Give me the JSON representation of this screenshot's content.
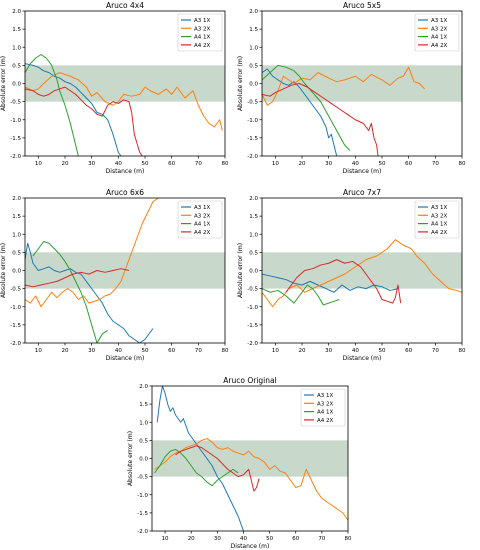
{
  "figure": {
    "band": {
      "y0": -0.5,
      "y1": 0.5,
      "color": "#b6cbb8"
    }
  },
  "chart_data": [
    {
      "type": "line",
      "title": "Aruco 4x4",
      "xlabel": "Distance (m)",
      "ylabel": "Absolute error (m)",
      "xlim": [
        5,
        80
      ],
      "ylim": [
        -2.0,
        2.0
      ],
      "xticks": [
        "10",
        "20",
        "30",
        "40",
        "50",
        "60",
        "70",
        "80"
      ],
      "yticks": [
        "-2.0",
        "-1.5",
        "-1.0",
        "-0.5",
        "0.0",
        "0.5",
        "1.0",
        "1.5",
        "2.0"
      ],
      "legend_position": "top-right",
      "series": [
        {
          "name": "A3 1X",
          "color": "#1f77b4",
          "x": [
            5,
            8,
            10,
            12,
            14,
            16,
            18,
            20,
            22,
            24,
            26,
            28,
            30,
            32,
            34,
            36,
            38,
            40,
            41
          ],
          "y": [
            0.55,
            0.5,
            0.45,
            0.35,
            0.3,
            0.2,
            0.15,
            0.05,
            0.0,
            -0.1,
            -0.25,
            -0.4,
            -0.55,
            -0.8,
            -0.85,
            -1.0,
            -1.4,
            -1.9,
            -2.0
          ]
        },
        {
          "name": "A3 2X",
          "color": "#ff7f0e",
          "x": [
            5,
            8,
            10,
            12,
            15,
            18,
            20,
            22,
            25,
            28,
            30,
            32,
            35,
            38,
            40,
            42,
            45,
            48,
            50,
            52,
            55,
            58,
            60,
            62,
            65,
            68,
            70,
            72,
            74,
            76,
            78,
            79
          ],
          "y": [
            -0.1,
            -0.2,
            -0.15,
            0.0,
            0.2,
            0.3,
            0.25,
            0.2,
            0.1,
            -0.1,
            -0.35,
            -0.25,
            -0.5,
            -0.6,
            -0.5,
            -0.3,
            -0.35,
            -0.3,
            -0.1,
            -0.2,
            -0.3,
            -0.15,
            -0.3,
            -0.1,
            -0.4,
            -0.2,
            -0.6,
            -0.9,
            -1.1,
            -1.2,
            -1.0,
            -1.3
          ]
        },
        {
          "name": "A4 1X",
          "color": "#2ca02c",
          "x": [
            5,
            7,
            9,
            11,
            13,
            15,
            17,
            18,
            20,
            22,
            24,
            25
          ],
          "y": [
            0.3,
            0.55,
            0.7,
            0.8,
            0.7,
            0.5,
            0.1,
            -0.2,
            -0.6,
            -1.1,
            -1.7,
            -2.0
          ]
        },
        {
          "name": "A4 2X",
          "color": "#d62728",
          "x": [
            5,
            8,
            10,
            12,
            14,
            16,
            18,
            20,
            22,
            24,
            26,
            28,
            30,
            32,
            34,
            36,
            38,
            40,
            42,
            44,
            45,
            46,
            48,
            49
          ],
          "y": [
            -0.15,
            -0.2,
            -0.3,
            -0.35,
            -0.3,
            -0.2,
            -0.15,
            -0.1,
            -0.2,
            -0.3,
            -0.45,
            -0.6,
            -0.7,
            -0.85,
            -0.9,
            -0.6,
            -0.5,
            -0.55,
            -0.45,
            -0.5,
            -0.8,
            -1.4,
            -1.9,
            -2.0
          ]
        }
      ]
    },
    {
      "type": "line",
      "title": "Aruco 5x5",
      "xlabel": "Distance (m)",
      "ylabel": "Absolute error (m)",
      "xlim": [
        5,
        80
      ],
      "ylim": [
        -2.0,
        2.0
      ],
      "xticks": [
        "10",
        "20",
        "30",
        "40",
        "50",
        "60",
        "70",
        "80"
      ],
      "yticks": [
        "-2.0",
        "-1.5",
        "-1.0",
        "-0.5",
        "0.0",
        "0.5",
        "1.0",
        "1.5",
        "2.0"
      ],
      "legend_position": "top-right",
      "series": [
        {
          "name": "A3 1X",
          "color": "#1f77b4",
          "x": [
            5,
            7,
            9,
            11,
            13,
            15,
            17,
            19,
            21,
            23,
            25,
            27,
            29,
            30,
            31,
            32,
            33
          ],
          "y": [
            0.3,
            0.4,
            0.2,
            0.1,
            0.0,
            -0.05,
            0.05,
            -0.1,
            -0.3,
            -0.5,
            -0.7,
            -0.9,
            -1.2,
            -1.5,
            -1.4,
            -1.7,
            -2.0
          ]
        },
        {
          "name": "A3 2X",
          "color": "#ff7f0e",
          "x": [
            5,
            7,
            9,
            11,
            13,
            15,
            17,
            20,
            23,
            26,
            30,
            33,
            36,
            40,
            43,
            46,
            50,
            53,
            56,
            58,
            60,
            62,
            64,
            66
          ],
          "y": [
            -0.3,
            -0.6,
            -0.5,
            -0.2,
            0.2,
            0.1,
            0.0,
            0.15,
            0.1,
            0.3,
            0.15,
            0.05,
            0.1,
            0.2,
            0.05,
            0.25,
            0.1,
            -0.05,
            0.15,
            0.2,
            0.45,
            0.05,
            0.0,
            -0.15
          ]
        },
        {
          "name": "A4 1X",
          "color": "#2ca02c",
          "x": [
            5,
            8,
            11,
            14,
            17,
            19,
            21,
            24,
            27,
            30,
            33,
            36,
            38
          ],
          "y": [
            0.1,
            0.3,
            0.5,
            0.45,
            0.35,
            0.2,
            0.0,
            -0.25,
            -0.5,
            -0.9,
            -1.3,
            -1.7,
            -1.85
          ]
        },
        {
          "name": "A4 2X",
          "color": "#d62728",
          "x": [
            5,
            8,
            10,
            13,
            16,
            19,
            22,
            25,
            28,
            31,
            34,
            37,
            40,
            43,
            45,
            46,
            47,
            48,
            48.5
          ],
          "y": [
            -0.3,
            -0.35,
            -0.25,
            -0.15,
            -0.05,
            0.0,
            -0.1,
            -0.25,
            -0.4,
            -0.55,
            -0.7,
            -0.85,
            -1.0,
            -1.1,
            -1.3,
            -1.1,
            -1.5,
            -1.7,
            -2.0
          ]
        }
      ]
    },
    {
      "type": "line",
      "title": "Aruco 6x6",
      "xlabel": "Distance (m)",
      "ylabel": "Absolute error (m)",
      "xlim": [
        5,
        80
      ],
      "ylim": [
        -2.0,
        2.0
      ],
      "xticks": [
        "10",
        "20",
        "30",
        "40",
        "50",
        "60",
        "70",
        "80"
      ],
      "yticks": [
        "-2.0",
        "-1.5",
        "-1.0",
        "-0.5",
        "0.0",
        "0.5",
        "1.0",
        "1.5",
        "2.0"
      ],
      "legend_position": "top-right",
      "series": [
        {
          "name": "A3 1X",
          "color": "#1f77b4",
          "x": [
            5,
            6,
            7,
            8,
            10,
            12,
            14,
            16,
            18,
            20,
            22,
            24,
            26,
            28,
            30,
            32,
            34,
            36,
            38,
            40,
            42,
            44,
            46,
            48,
            50,
            52,
            53
          ],
          "y": [
            0.3,
            0.75,
            0.5,
            0.2,
            0.0,
            0.05,
            0.1,
            0.0,
            -0.05,
            0.0,
            0.05,
            -0.05,
            -0.1,
            -0.3,
            -0.5,
            -0.7,
            -0.9,
            -1.2,
            -1.4,
            -1.5,
            -1.6,
            -1.8,
            -1.9,
            -2.0,
            -1.9,
            -1.7,
            -1.6
          ]
        },
        {
          "name": "A3 2X",
          "color": "#ff7f0e",
          "x": [
            5,
            7,
            9,
            11,
            13,
            15,
            17,
            19,
            21,
            23,
            25,
            27,
            29,
            31,
            33,
            35,
            37,
            39,
            41,
            43,
            45,
            47,
            49,
            51,
            53,
            55
          ],
          "y": [
            -0.8,
            -0.9,
            -0.7,
            -1.0,
            -0.8,
            -0.6,
            -0.75,
            -0.6,
            -0.5,
            -0.6,
            -0.8,
            -0.7,
            -0.9,
            -0.85,
            -0.8,
            -0.7,
            -0.65,
            -0.5,
            -0.3,
            0.1,
            0.5,
            0.9,
            1.3,
            1.6,
            1.9,
            2.0
          ]
        },
        {
          "name": "A4 1X",
          "color": "#2ca02c",
          "x": [
            8,
            10,
            12,
            14,
            16,
            18,
            20,
            22,
            24,
            26,
            28,
            30,
            32,
            34,
            36
          ],
          "y": [
            0.4,
            0.6,
            0.8,
            0.75,
            0.6,
            0.45,
            0.25,
            0.0,
            -0.3,
            -0.6,
            -1.0,
            -1.5,
            -2.0,
            -1.75,
            -1.65
          ]
        },
        {
          "name": "A4 2X",
          "color": "#d62728",
          "x": [
            5,
            8,
            11,
            14,
            17,
            20,
            23,
            26,
            29,
            32,
            35,
            38,
            41,
            44
          ],
          "y": [
            -0.4,
            -0.45,
            -0.4,
            -0.35,
            -0.3,
            -0.2,
            -0.1,
            -0.05,
            -0.1,
            0.0,
            -0.05,
            0.0,
            0.05,
            0.0
          ]
        }
      ]
    },
    {
      "type": "line",
      "title": "Aruco 7x7",
      "xlabel": "Distance (m)",
      "ylabel": "Absolute error (m)",
      "xlim": [
        5,
        80
      ],
      "ylim": [
        -2.0,
        2.0
      ],
      "xticks": [
        "10",
        "20",
        "30",
        "40",
        "50",
        "60",
        "70",
        "80"
      ],
      "yticks": [
        "-2.0",
        "-1.5",
        "-1.0",
        "-0.5",
        "0.0",
        "0.5",
        "1.0",
        "1.5",
        "2.0"
      ],
      "legend_position": "top-right",
      "series": [
        {
          "name": "A3 1X",
          "color": "#1f77b4",
          "x": [
            5,
            8,
            11,
            14,
            17,
            20,
            23,
            26,
            29,
            32,
            35,
            38,
            41,
            44,
            47,
            50,
            53,
            56
          ],
          "y": [
            -0.1,
            -0.15,
            -0.2,
            -0.25,
            -0.35,
            -0.4,
            -0.3,
            -0.4,
            -0.5,
            -0.6,
            -0.4,
            -0.55,
            -0.45,
            -0.5,
            -0.4,
            -0.45,
            -0.55,
            -0.5
          ]
        },
        {
          "name": "A3 2X",
          "color": "#ff7f0e",
          "x": [
            5,
            7,
            9,
            11,
            13,
            15,
            18,
            21,
            24,
            27,
            30,
            33,
            36,
            40,
            44,
            48,
            52,
            55,
            58,
            61,
            63,
            66,
            69,
            72,
            75,
            78,
            80
          ],
          "y": [
            -0.6,
            -0.8,
            -1.0,
            -0.8,
            -0.7,
            -0.5,
            -0.4,
            -0.6,
            -0.5,
            -0.4,
            -0.3,
            -0.2,
            -0.1,
            0.1,
            0.3,
            0.4,
            0.6,
            0.85,
            0.7,
            0.6,
            0.4,
            0.2,
            -0.1,
            -0.3,
            -0.5,
            -0.55,
            -0.6
          ]
        },
        {
          "name": "A4 1X",
          "color": "#2ca02c",
          "x": [
            5,
            8,
            11,
            14,
            17,
            20,
            22,
            24,
            26,
            28,
            30,
            32,
            34
          ],
          "y": [
            -0.5,
            -0.6,
            -0.55,
            -0.7,
            -0.9,
            -0.6,
            -0.4,
            -0.5,
            -0.7,
            -0.95,
            -0.9,
            -0.85,
            -0.8
          ]
        },
        {
          "name": "A4 2X",
          "color": "#d62728",
          "x": [
            14,
            16,
            18,
            21,
            24,
            27,
            30,
            33,
            36,
            39,
            42,
            45,
            48,
            50,
            52,
            54,
            55,
            56,
            57
          ],
          "y": [
            -0.6,
            -0.4,
            -0.2,
            0.0,
            0.05,
            0.15,
            0.2,
            0.3,
            0.2,
            0.25,
            0.1,
            -0.2,
            -0.5,
            -0.8,
            -0.85,
            -0.9,
            -0.75,
            -0.4,
            -0.9
          ]
        }
      ]
    },
    {
      "type": "line",
      "title": "Aruco Original",
      "xlabel": "Distance (m)",
      "ylabel": "Absolute error (m)",
      "xlim": [
        5,
        80
      ],
      "ylim": [
        -2.0,
        2.0
      ],
      "xticks": [
        "10",
        "20",
        "30",
        "40",
        "50",
        "60",
        "70",
        "80"
      ],
      "yticks": [
        "-2.0",
        "-1.5",
        "-1.0",
        "-0.5",
        "0.0",
        "0.5",
        "1.0",
        "1.5",
        "2.0"
      ],
      "legend_position": "top-right",
      "series": [
        {
          "name": "A3 1X",
          "color": "#1f77b4",
          "x": [
            7,
            8,
            9,
            10,
            11,
            12,
            13,
            14,
            15,
            16,
            17,
            18,
            19,
            20,
            22,
            24,
            26,
            28,
            30,
            32,
            34,
            36,
            38,
            39,
            40
          ],
          "y": [
            1.0,
            1.6,
            2.0,
            1.8,
            1.5,
            1.3,
            1.4,
            1.2,
            1.1,
            1.0,
            1.1,
            0.9,
            0.7,
            0.6,
            0.4,
            0.2,
            0.0,
            -0.2,
            -0.5,
            -0.7,
            -1.0,
            -1.3,
            -1.6,
            -1.8,
            -2.0
          ]
        },
        {
          "name": "A3 2X",
          "color": "#ff7f0e",
          "x": [
            6,
            8,
            10,
            12,
            14,
            16,
            18,
            20,
            22,
            24,
            26,
            28,
            30,
            32,
            34,
            36,
            38,
            40,
            42,
            44,
            46,
            48,
            50,
            52,
            54,
            56,
            58,
            60,
            62,
            64,
            66,
            68,
            70,
            72,
            74,
            76,
            78,
            80
          ],
          "y": [
            -0.3,
            -0.2,
            -0.1,
            0.05,
            0.15,
            0.2,
            0.3,
            0.35,
            0.4,
            0.5,
            0.55,
            0.45,
            0.3,
            0.25,
            0.3,
            0.2,
            0.15,
            0.1,
            0.2,
            0.05,
            0.0,
            -0.1,
            -0.3,
            -0.2,
            -0.35,
            -0.4,
            -0.6,
            -0.8,
            -0.75,
            -0.3,
            -0.6,
            -0.9,
            -1.1,
            -1.2,
            -1.3,
            -1.4,
            -1.5,
            -1.7
          ]
        },
        {
          "name": "A4 1X",
          "color": "#2ca02c",
          "x": [
            6,
            8,
            10,
            12,
            14,
            16,
            18,
            20,
            22,
            24,
            26,
            28,
            30,
            32,
            34,
            36,
            38
          ],
          "y": [
            -0.4,
            -0.2,
            0.05,
            0.2,
            0.25,
            0.15,
            0.0,
            -0.2,
            -0.4,
            -0.5,
            -0.65,
            -0.75,
            -0.6,
            -0.5,
            -0.4,
            -0.3,
            -0.4
          ]
        },
        {
          "name": "A4 2X",
          "color": "#d62728",
          "x": [
            14,
            16,
            18,
            20,
            22,
            24,
            26,
            28,
            30,
            32,
            34,
            36,
            38,
            40,
            42,
            44,
            45,
            46
          ],
          "y": [
            0.1,
            0.2,
            0.25,
            0.3,
            0.35,
            0.3,
            0.2,
            0.1,
            0.0,
            -0.15,
            -0.3,
            -0.4,
            -0.5,
            -0.45,
            -0.3,
            -0.9,
            -0.8,
            -0.55
          ]
        }
      ]
    }
  ]
}
